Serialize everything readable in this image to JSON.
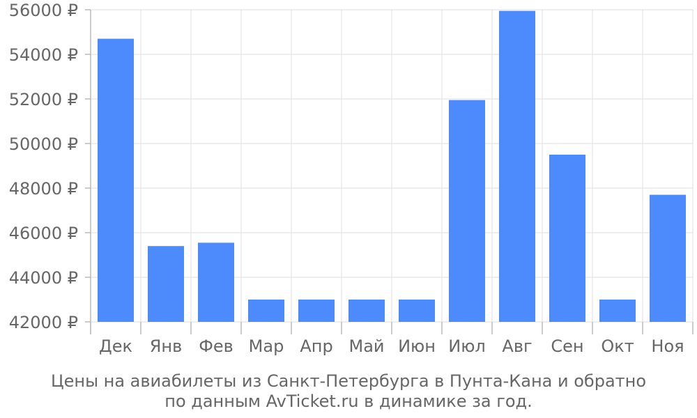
{
  "colors": {
    "bar": "#4d8afc",
    "grid": "#dddddd",
    "text": "#666666",
    "background": "#ffffff"
  },
  "caption": {
    "line1": "Цены на авиабилеты из Санкт-Петербурга в Пунта-Кана и обратно",
    "line2": "по данным AvTicket.ru в динамике за год."
  },
  "chart_data": {
    "type": "bar",
    "categories": [
      "Дек",
      "Янв",
      "Фев",
      "Мар",
      "Апр",
      "Май",
      "Июн",
      "Июл",
      "Авг",
      "Сен",
      "Окт",
      "Ноя"
    ],
    "values": [
      54700,
      45400,
      45550,
      43000,
      43000,
      43000,
      43000,
      51950,
      55950,
      49500,
      43000,
      47700
    ],
    "ylim": [
      42000,
      56000
    ],
    "yticks": [
      42000,
      44000,
      46000,
      48000,
      50000,
      52000,
      54000,
      56000
    ],
    "ytick_labels": [
      "42000 ₽",
      "44000 ₽",
      "46000 ₽",
      "48000 ₽",
      "50000 ₽",
      "52000 ₽",
      "54000 ₽",
      "56000 ₽"
    ],
    "grid": true,
    "legend": "none"
  }
}
